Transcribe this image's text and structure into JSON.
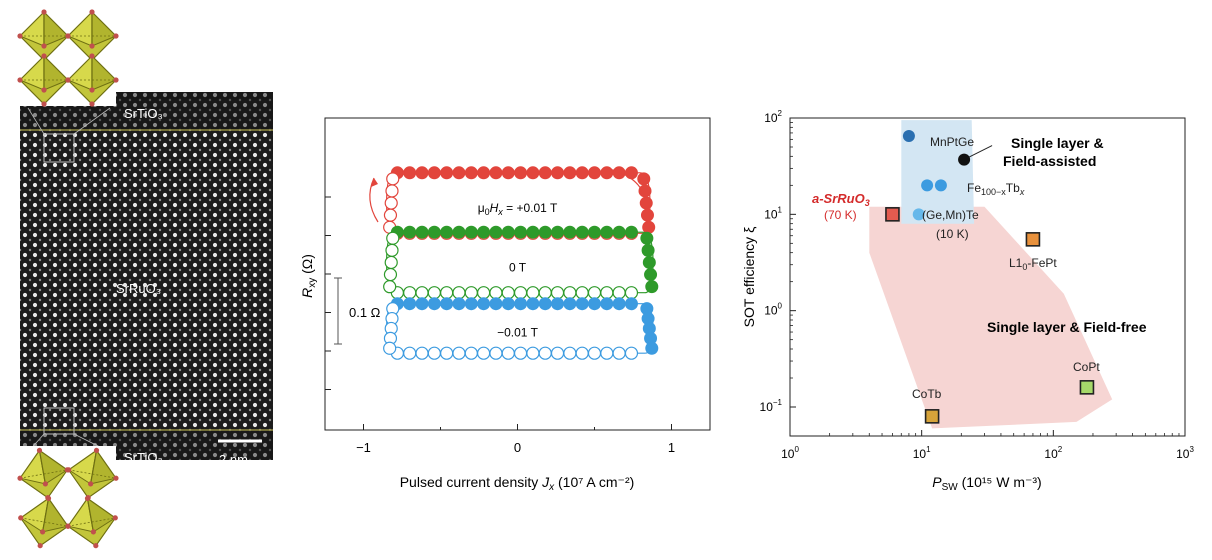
{
  "panels": {
    "stem": {
      "top_label": "SrTiO₃",
      "middle_label": "SrRuO₃",
      "bottom_label": "SrTiO₃",
      "scale_bar": "2 nm",
      "colors": {
        "octahedron": "#c2c53a",
        "octahedron_edge": "#6e6f12",
        "atom": "#c0504d"
      }
    }
  },
  "chart_data": [
    {
      "type": "scatter",
      "xlabel_main": "Pulsed current density ",
      "xlabel_sym": "J",
      "xlabel_sub": "x",
      "xlabel_unit": " (10⁷ A cm⁻²)",
      "ylabel_main": "R",
      "ylabel_sub": "xy",
      "ylabel_unit": " (Ω)",
      "xlim": [
        -1.25,
        1.25
      ],
      "x_ticks": [
        -1,
        0,
        1
      ],
      "x_tick_labels": [
        "−1",
        "0",
        "1"
      ],
      "scale_bar_label": "0.1 Ω",
      "series": [
        {
          "label_prefix": "μ",
          "label_sub": "0",
          "label_mid": "H",
          "label_sub2": "x",
          "label_suffix": " = +0.01 T",
          "color": "#e2453c",
          "baseline": 0.97,
          "height": 0.55,
          "switch_up_x": 0.8,
          "switch_down_x": -0.85
        },
        {
          "label_prefix": "",
          "label_sub": "",
          "label_mid": "",
          "label_sub2": "",
          "label_suffix": "0 T",
          "color": "#2e9a2a",
          "baseline": 0.43,
          "height": 0.55,
          "switch_up_x": 0.82,
          "switch_down_x": -0.85
        },
        {
          "label_prefix": "",
          "label_sub": "",
          "label_mid": "",
          "label_sub2": "",
          "label_suffix": "−0.01 T",
          "color": "#3c9be0",
          "baseline": -0.12,
          "height": 0.45,
          "switch_up_x": 0.82,
          "switch_down_x": -0.85
        }
      ]
    },
    {
      "type": "scatter",
      "x_scale": "log",
      "y_scale": "log",
      "xlabel_main": "P",
      "xlabel_sub": "SW",
      "xlabel_unit": " (10¹⁵ W m⁻³)",
      "ylabel": "SOT efficiency ξ",
      "xlim": [
        1,
        1000
      ],
      "ylim": [
        0.05,
        100
      ],
      "x_tick_labels": [
        {
          "base": "10",
          "exp": "0"
        },
        {
          "base": "10",
          "exp": "1"
        },
        {
          "base": "10",
          "exp": "2"
        },
        {
          "base": "10",
          "exp": "3"
        }
      ],
      "y_tick_labels": [
        {
          "base": "10",
          "exp": "−1"
        },
        {
          "base": "10",
          "exp": "0"
        },
        {
          "base": "10",
          "exp": "1"
        },
        {
          "base": "10",
          "exp": "2"
        }
      ],
      "region_labels": {
        "field_free": "Single layer & Field-free",
        "field_assisted_line1": "Single layer &",
        "field_assisted_line2": "Field-assisted"
      },
      "colors": {
        "field_free_region": "#f6d5d3",
        "field_assisted_region": "#d3e6f3",
        "square_edge": "#222222"
      },
      "points": [
        {
          "name": "MnPtGe",
          "x": 8,
          "y": 65,
          "marker": "circle",
          "color": "#2a6fb0"
        },
        {
          "name": "single-layer-field-assisted-point",
          "x": 21,
          "y": 37,
          "marker": "circle",
          "color": "#111111"
        },
        {
          "name": "Fe-Tb-a",
          "x": 11,
          "y": 20,
          "marker": "circle",
          "color": "#3c9be0"
        },
        {
          "name": "Fe-Tb-b",
          "x": 14,
          "y": 20,
          "marker": "circle",
          "color": "#3c9be0"
        },
        {
          "name": "GeMnTe",
          "x": 9.5,
          "y": 10,
          "marker": "circle",
          "color": "#66b8ea"
        },
        {
          "name": "a-SrRuO3",
          "x": 6,
          "y": 10,
          "marker": "square",
          "color": "#e35b4f"
        },
        {
          "name": "L10-FePt",
          "x": 70,
          "y": 5.5,
          "marker": "square",
          "color": "#e8913c"
        },
        {
          "name": "CoPt",
          "x": 180,
          "y": 0.16,
          "marker": "square",
          "color": "#a6d96a"
        },
        {
          "name": "CoTb",
          "x": 12,
          "y": 0.08,
          "marker": "square",
          "color": "#d6a33a"
        }
      ],
      "labels": {
        "mnptge": "MnPtGe",
        "fetb_main": "Fe",
        "fetb_sub1": "100−x",
        "fetb_mid": "Tb",
        "fetb_sub2": "x",
        "gemnte_line1": "(Ge,Mn)Te",
        "gemnte_line2": "(10 K)",
        "srruo_line1": "a-SrRuO",
        "srruo_sub": "3",
        "srruo_line2": "(70 K)",
        "fept_main": "L1",
        "fept_sub": "0",
        "fept_suffix": "-FePt",
        "copt": "CoPt",
        "cotb": "CoTb"
      }
    }
  ]
}
